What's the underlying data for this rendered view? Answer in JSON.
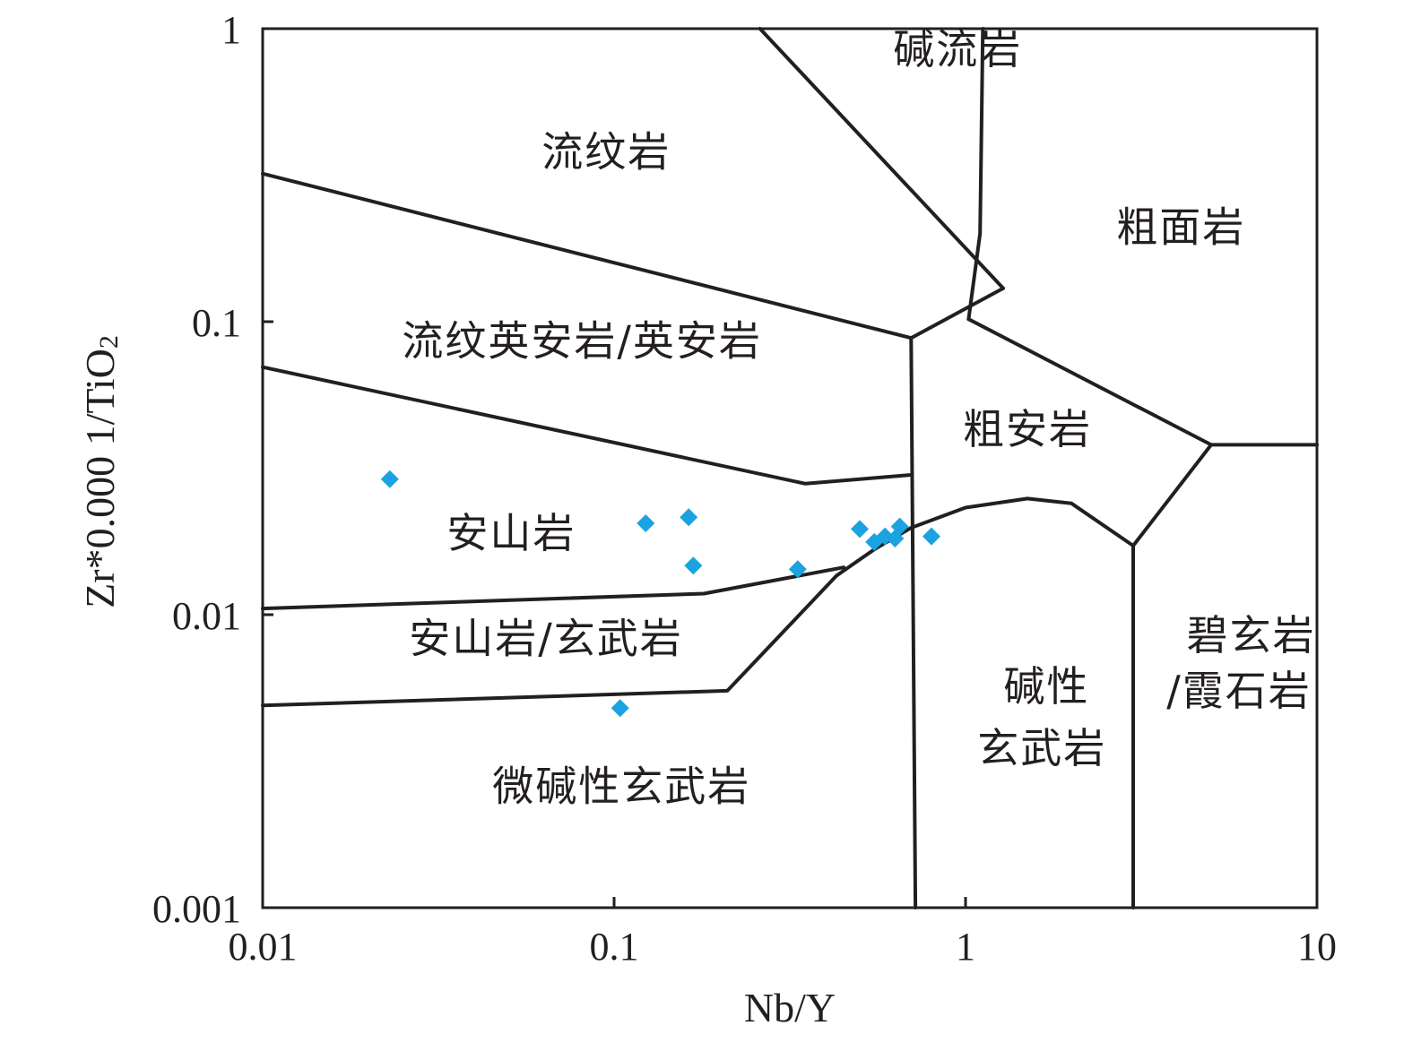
{
  "chart_data": {
    "type": "scatter",
    "xlabel": "Nb/Y",
    "ylabel_main": "Zr*0.000 1/TiO",
    "ylabel_sub": "2",
    "x_scale": "log",
    "y_scale": "log",
    "xlim": [
      0.01,
      10
    ],
    "ylim": [
      0.001,
      1
    ],
    "x_ticks": [
      {
        "value": 0.01,
        "label": "0.01"
      },
      {
        "value": 0.1,
        "label": "0.1"
      },
      {
        "value": 1,
        "label": "1"
      },
      {
        "value": 10,
        "label": "10"
      }
    ],
    "y_ticks": [
      {
        "value": 0.001,
        "label": "0.001"
      },
      {
        "value": 0.01,
        "label": "0.01"
      },
      {
        "value": 0.1,
        "label": "0.1"
      },
      {
        "value": 1,
        "label": "1"
      }
    ],
    "point_color": "#1aa3e0",
    "marker": "diamond",
    "points": [
      {
        "x": 0.023,
        "y": 0.029
      },
      {
        "x": 0.123,
        "y": 0.0205
      },
      {
        "x": 0.163,
        "y": 0.0215
      },
      {
        "x": 0.168,
        "y": 0.0147
      },
      {
        "x": 0.104,
        "y": 0.0048
      },
      {
        "x": 0.333,
        "y": 0.0143
      },
      {
        "x": 0.5,
        "y": 0.0196
      },
      {
        "x": 0.55,
        "y": 0.0177
      },
      {
        "x": 0.59,
        "y": 0.0185
      },
      {
        "x": 0.63,
        "y": 0.0182
      },
      {
        "x": 0.65,
        "y": 0.02
      },
      {
        "x": 0.8,
        "y": 0.0185
      }
    ],
    "boundaries": [
      {
        "name": "rhyolite-lower",
        "points": [
          [
            0.01,
            0.32
          ],
          [
            0.7,
            0.088
          ]
        ]
      },
      {
        "name": "rhyodacite-lower",
        "points": [
          [
            0.01,
            0.07
          ],
          [
            0.35,
            0.028
          ],
          [
            0.7,
            0.03
          ]
        ]
      },
      {
        "name": "andesite-lower",
        "points": [
          [
            0.01,
            0.0105
          ],
          [
            0.18,
            0.0118
          ],
          [
            0.45,
            0.0145
          ]
        ]
      },
      {
        "name": "andesite-basalt-lower",
        "points": [
          [
            0.01,
            0.0049
          ],
          [
            0.21,
            0.0055
          ],
          [
            0.43,
            0.0136
          ],
          [
            0.55,
            0.0167
          ],
          [
            0.7,
            0.0198
          ],
          [
            1.0,
            0.0232
          ],
          [
            1.5,
            0.0249
          ],
          [
            2.0,
            0.024
          ],
          [
            3.0,
            0.0172
          ]
        ]
      },
      {
        "name": "alkali-rhyolite-left",
        "points": [
          [
            0.26,
            1.0
          ],
          [
            1.28,
            0.13
          ]
        ]
      },
      {
        "name": "alkali-rhyolite-right",
        "points": [
          [
            1.12,
            1.0
          ],
          [
            1.1,
            0.2
          ],
          [
            1.02,
            0.102
          ]
        ]
      },
      {
        "name": "trachyandesite-left",
        "points": [
          [
            1.28,
            0.13
          ],
          [
            0.7,
            0.088
          ],
          [
            0.72,
            0.001
          ]
        ]
      },
      {
        "name": "trachyandesite-top",
        "points": [
          [
            1.02,
            0.102
          ],
          [
            5.0,
            0.038
          ],
          [
            10,
            0.038
          ]
        ]
      },
      {
        "name": "trachyandesite-bottom",
        "points": [
          [
            5.0,
            0.038
          ],
          [
            3.0,
            0.0172
          ]
        ]
      },
      {
        "name": "alkali-basalt-right",
        "points": [
          [
            3.0,
            0.0172
          ],
          [
            3.0,
            0.001
          ]
        ]
      }
    ],
    "regions": [
      {
        "label": "流纹岩",
        "x": 0.095,
        "y": 0.38
      },
      {
        "label": "碱流岩",
        "x": 0.95,
        "y": 0.85
      },
      {
        "label": "粗面岩",
        "x": 4.1,
        "y": 0.21
      },
      {
        "label": "流纹英安岩/英安岩",
        "x": 0.081,
        "y": 0.086
      },
      {
        "label": "粗安岩",
        "x": 1.5,
        "y": 0.043
      },
      {
        "label": "安山岩",
        "x": 0.051,
        "y": 0.019
      },
      {
        "label": "安山岩/玄武岩",
        "x": 0.064,
        "y": 0.0083
      },
      {
        "label": "碧玄岩",
        "x": 6.5,
        "y": 0.0085
      },
      {
        "label": "/霞石岩",
        "x": 6.0,
        "y": 0.0055
      },
      {
        "label": "碱性",
        "x": 1.7,
        "y": 0.0057
      },
      {
        "label": "玄武岩",
        "x": 1.65,
        "y": 0.0035
      },
      {
        "label": "微碱性玄武岩",
        "x": 0.105,
        "y": 0.0026
      }
    ]
  }
}
